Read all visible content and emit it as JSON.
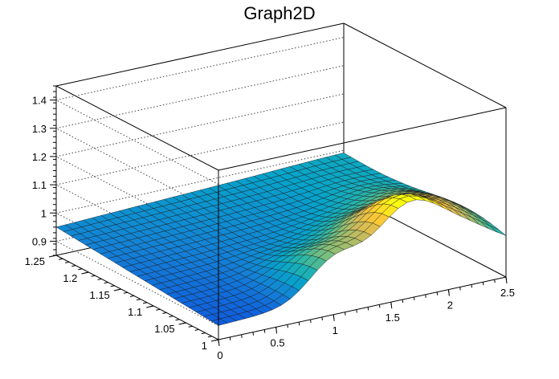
{
  "chart_data": {
    "type": "surface",
    "title": "Graph2D",
    "xlabel": "",
    "ylabel": "",
    "zlabel": "",
    "xlim": [
      0,
      2.5
    ],
    "ylim": [
      1.0,
      1.25
    ],
    "zlim": [
      0.85,
      1.45
    ],
    "x_ticks": [
      "0",
      "0.5",
      "1",
      "1.5",
      "2",
      "2.5"
    ],
    "y_ticks": [
      "1",
      "1.05",
      "1.1",
      "1.15",
      "1.2",
      "1.25"
    ],
    "z_ticks": [
      "0.9",
      "1",
      "1.1",
      "1.2",
      "1.3",
      "1.4"
    ],
    "grid": true,
    "legend": "none",
    "colormap": [
      "#352a87",
      "#0f5cdd",
      "#1481d6",
      "#06a4ca",
      "#2eb7a4",
      "#87bf77",
      "#d1bb59",
      "#fec832",
      "#f9fb0e"
    ],
    "features": [
      {
        "x": 1.0,
        "y": 1.0,
        "amplitude": 0.12,
        "sigma_x": 0.22,
        "sigma_y": 0.05
      },
      {
        "x": 1.65,
        "y": 1.0,
        "amplitude": 0.25,
        "sigma_x": 0.3,
        "sigma_y": 0.06
      },
      {
        "x": 2.2,
        "y": 1.05,
        "amplitude": 0.12,
        "sigma_x": 0.28,
        "sigma_y": 0.07
      }
    ],
    "base_level": 0.9,
    "base_slope_x": 0.04
  }
}
